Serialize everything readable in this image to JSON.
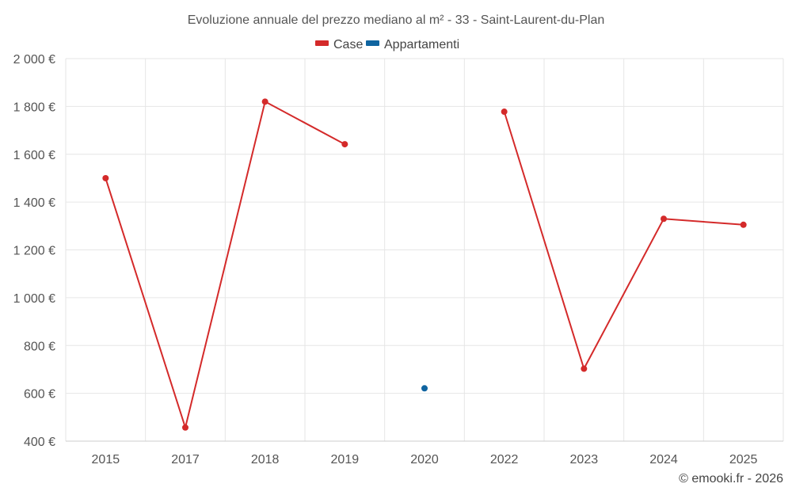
{
  "chart_data": {
    "type": "line",
    "title": "Evoluzione annuale del prezzo mediano al m² - 33 - Saint-Laurent-du-Plan",
    "categories": [
      "2015",
      "2017",
      "2018",
      "2019",
      "2020",
      "2022",
      "2023",
      "2024",
      "2025"
    ],
    "ylim": [
      400,
      2000
    ],
    "yticks": [
      400,
      600,
      800,
      1000,
      1200,
      1400,
      1600,
      1800,
      2000
    ],
    "ytick_labels": [
      "400 €",
      "600 €",
      "800 €",
      "1 000 €",
      "1 200 €",
      "1 400 €",
      "1 600 €",
      "1 800 €",
      "2 000 €"
    ],
    "xlabel": "",
    "ylabel": "",
    "grid": true,
    "legend_position": "top-center",
    "series": [
      {
        "name": "Case",
        "color": "#d42a2a",
        "values": [
          1500,
          457,
          1820,
          1642,
          null,
          1778,
          703,
          1330,
          1305
        ]
      },
      {
        "name": "Appartamenti",
        "color": "#0f64a0",
        "values": [
          null,
          null,
          null,
          null,
          621,
          null,
          null,
          null,
          null
        ]
      }
    ]
  },
  "credit": "© emooki.fr - 2026"
}
